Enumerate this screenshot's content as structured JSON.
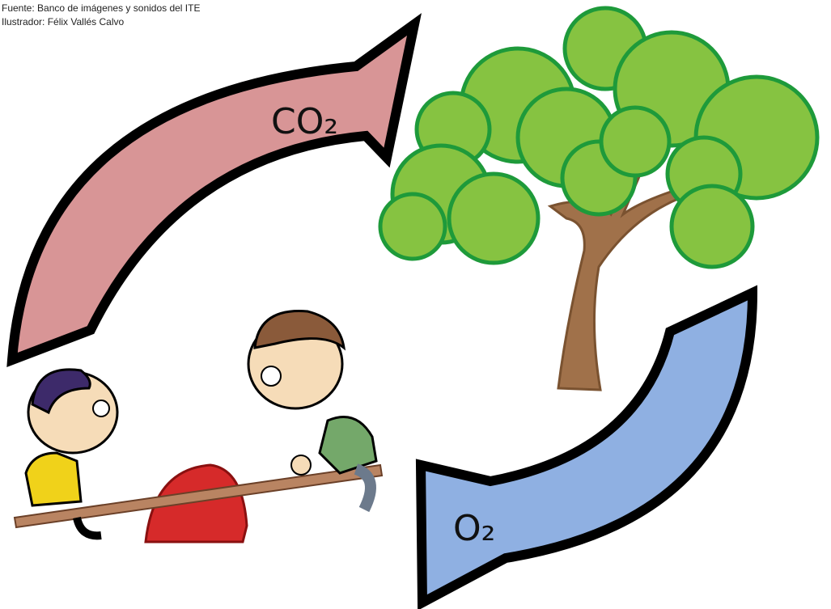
{
  "credits": {
    "source": "Fuente: Banco de imágenes y sonidos del ITE",
    "illustrator": "Ilustrador: Félix Vallés Calvo"
  },
  "arrows": {
    "to_tree": {
      "label": "CO₂"
    },
    "to_people": {
      "label": "O₂"
    }
  }
}
